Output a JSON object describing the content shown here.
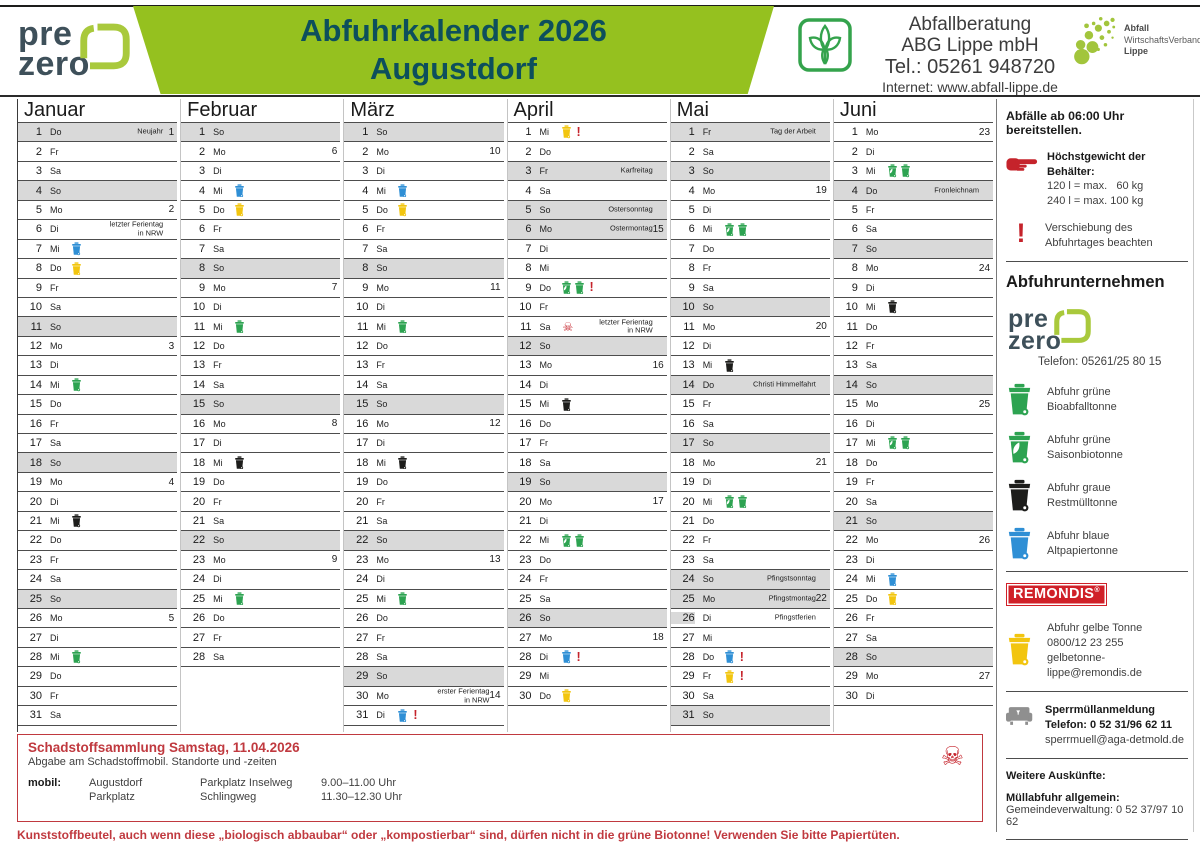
{
  "colors": {
    "lime": "#95c11f",
    "teal": "#0d4f5c",
    "red": "#c5232b",
    "shaded": "#d9d9d9",
    "bin_green": "#2da351",
    "bin_blue": "#2f8fd5",
    "bin_yellow": "#f2c50f",
    "bin_black": "#1d1d1b"
  },
  "glyphs": {
    "exclamation": "!",
    "skull": "☠"
  },
  "logos": {
    "prezero_line1": "pre",
    "prezero_line2": "zero"
  },
  "header": {
    "title_line1": "Abfuhrkalender 2026",
    "title_line2": "Augustdorf",
    "contact": {
      "line1": "Abfallberatung",
      "line2": "ABG Lippe mbH",
      "line3": "Tel.: 05261 948720",
      "line4": "Internet: www.abfall-lippe.de"
    },
    "awv": {
      "line1": "Abfall",
      "line2": "WirtschaftsVerband",
      "line3": "Lippe"
    }
  },
  "months": [
    {
      "name": "Januar",
      "days": [
        {
          "d": 1,
          "w": "Do",
          "s": 1,
          "n": "Neujahr",
          "k": 1
        },
        {
          "d": 2,
          "w": "Fr"
        },
        {
          "d": 3,
          "w": "Sa"
        },
        {
          "d": 4,
          "w": "So",
          "s": 1
        },
        {
          "d": 5,
          "w": "Mo",
          "k": 2
        },
        {
          "d": 6,
          "w": "Di",
          "n": "letzter Ferientag\nin NRW"
        },
        {
          "d": 7,
          "w": "Mi",
          "i": [
            "blue"
          ]
        },
        {
          "d": 8,
          "w": "Do",
          "i": [
            "yellow"
          ]
        },
        {
          "d": 9,
          "w": "Fr"
        },
        {
          "d": 10,
          "w": "Sa"
        },
        {
          "d": 11,
          "w": "So",
          "s": 1
        },
        {
          "d": 12,
          "w": "Mo",
          "k": 3
        },
        {
          "d": 13,
          "w": "Di"
        },
        {
          "d": 14,
          "w": "Mi",
          "i": [
            "green"
          ]
        },
        {
          "d": 15,
          "w": "Do"
        },
        {
          "d": 16,
          "w": "Fr"
        },
        {
          "d": 17,
          "w": "Sa"
        },
        {
          "d": 18,
          "w": "So",
          "s": 1
        },
        {
          "d": 19,
          "w": "Mo",
          "k": 4
        },
        {
          "d": 20,
          "w": "Di"
        },
        {
          "d": 21,
          "w": "Mi",
          "i": [
            "black"
          ]
        },
        {
          "d": 22,
          "w": "Do"
        },
        {
          "d": 23,
          "w": "Fr"
        },
        {
          "d": 24,
          "w": "Sa"
        },
        {
          "d": 25,
          "w": "So",
          "s": 1
        },
        {
          "d": 26,
          "w": "Mo",
          "k": 5
        },
        {
          "d": 27,
          "w": "Di"
        },
        {
          "d": 28,
          "w": "Mi",
          "i": [
            "green"
          ]
        },
        {
          "d": 29,
          "w": "Do"
        },
        {
          "d": 30,
          "w": "Fr"
        },
        {
          "d": 31,
          "w": "Sa"
        }
      ]
    },
    {
      "name": "Februar",
      "days": [
        {
          "d": 1,
          "w": "So",
          "s": 1
        },
        {
          "d": 2,
          "w": "Mo",
          "k": 6
        },
        {
          "d": 3,
          "w": "Di"
        },
        {
          "d": 4,
          "w": "Mi",
          "i": [
            "blue"
          ]
        },
        {
          "d": 5,
          "w": "Do",
          "i": [
            "yellow"
          ]
        },
        {
          "d": 6,
          "w": "Fr"
        },
        {
          "d": 7,
          "w": "Sa"
        },
        {
          "d": 8,
          "w": "So",
          "s": 1
        },
        {
          "d": 9,
          "w": "Mo",
          "k": 7
        },
        {
          "d": 10,
          "w": "Di"
        },
        {
          "d": 11,
          "w": "Mi",
          "i": [
            "green"
          ]
        },
        {
          "d": 12,
          "w": "Do"
        },
        {
          "d": 13,
          "w": "Fr"
        },
        {
          "d": 14,
          "w": "Sa"
        },
        {
          "d": 15,
          "w": "So",
          "s": 1
        },
        {
          "d": 16,
          "w": "Mo",
          "k": 8
        },
        {
          "d": 17,
          "w": "Di"
        },
        {
          "d": 18,
          "w": "Mi",
          "i": [
            "black"
          ]
        },
        {
          "d": 19,
          "w": "Do"
        },
        {
          "d": 20,
          "w": "Fr"
        },
        {
          "d": 21,
          "w": "Sa"
        },
        {
          "d": 22,
          "w": "So",
          "s": 1
        },
        {
          "d": 23,
          "w": "Mo",
          "k": 9
        },
        {
          "d": 24,
          "w": "Di"
        },
        {
          "d": 25,
          "w": "Mi",
          "i": [
            "green"
          ]
        },
        {
          "d": 26,
          "w": "Do"
        },
        {
          "d": 27,
          "w": "Fr"
        },
        {
          "d": 28,
          "w": "Sa"
        }
      ]
    },
    {
      "name": "März",
      "days": [
        {
          "d": 1,
          "w": "So",
          "s": 1
        },
        {
          "d": 2,
          "w": "Mo",
          "k": 10
        },
        {
          "d": 3,
          "w": "Di"
        },
        {
          "d": 4,
          "w": "Mi",
          "i": [
            "blue"
          ]
        },
        {
          "d": 5,
          "w": "Do",
          "i": [
            "yellow"
          ]
        },
        {
          "d": 6,
          "w": "Fr"
        },
        {
          "d": 7,
          "w": "Sa"
        },
        {
          "d": 8,
          "w": "So",
          "s": 1
        },
        {
          "d": 9,
          "w": "Mo",
          "k": 11
        },
        {
          "d": 10,
          "w": "Di"
        },
        {
          "d": 11,
          "w": "Mi",
          "i": [
            "green"
          ]
        },
        {
          "d": 12,
          "w": "Do"
        },
        {
          "d": 13,
          "w": "Fr"
        },
        {
          "d": 14,
          "w": "Sa"
        },
        {
          "d": 15,
          "w": "So",
          "s": 1
        },
        {
          "d": 16,
          "w": "Mo",
          "k": 12
        },
        {
          "d": 17,
          "w": "Di"
        },
        {
          "d": 18,
          "w": "Mi",
          "i": [
            "black"
          ]
        },
        {
          "d": 19,
          "w": "Do"
        },
        {
          "d": 20,
          "w": "Fr"
        },
        {
          "d": 21,
          "w": "Sa"
        },
        {
          "d": 22,
          "w": "So",
          "s": 1
        },
        {
          "d": 23,
          "w": "Mo",
          "k": 13
        },
        {
          "d": 24,
          "w": "Di"
        },
        {
          "d": 25,
          "w": "Mi",
          "i": [
            "green"
          ]
        },
        {
          "d": 26,
          "w": "Do"
        },
        {
          "d": 27,
          "w": "Fr"
        },
        {
          "d": 28,
          "w": "Sa"
        },
        {
          "d": 29,
          "w": "So",
          "s": 1
        },
        {
          "d": 30,
          "w": "Mo",
          "n": "erster Ferientag\nin NRW",
          "k": 14
        },
        {
          "d": 31,
          "w": "Di",
          "i": [
            "blue",
            "excl"
          ]
        }
      ]
    },
    {
      "name": "April",
      "days": [
        {
          "d": 1,
          "w": "Mi",
          "i": [
            "yellow",
            "excl"
          ]
        },
        {
          "d": 2,
          "w": "Do"
        },
        {
          "d": 3,
          "w": "Fr",
          "s": 1,
          "n": "Karfreitag"
        },
        {
          "d": 4,
          "w": "Sa"
        },
        {
          "d": 5,
          "w": "So",
          "s": 1,
          "n": "Ostersonntag"
        },
        {
          "d": 6,
          "w": "Mo",
          "s": 1,
          "n": "Ostermontag",
          "k": 15
        },
        {
          "d": 7,
          "w": "Di"
        },
        {
          "d": 8,
          "w": "Mi"
        },
        {
          "d": 9,
          "w": "Do",
          "i": [
            "saison",
            "green",
            "excl"
          ]
        },
        {
          "d": 10,
          "w": "Fr"
        },
        {
          "d": 11,
          "w": "Sa",
          "i": [
            "skull"
          ],
          "n": "letzter Ferientag\nin NRW"
        },
        {
          "d": 12,
          "w": "So",
          "s": 1
        },
        {
          "d": 13,
          "w": "Mo",
          "k": 16
        },
        {
          "d": 14,
          "w": "Di"
        },
        {
          "d": 15,
          "w": "Mi",
          "i": [
            "black"
          ]
        },
        {
          "d": 16,
          "w": "Do"
        },
        {
          "d": 17,
          "w": "Fr"
        },
        {
          "d": 18,
          "w": "Sa"
        },
        {
          "d": 19,
          "w": "So",
          "s": 1
        },
        {
          "d": 20,
          "w": "Mo",
          "k": 17
        },
        {
          "d": 21,
          "w": "Di"
        },
        {
          "d": 22,
          "w": "Mi",
          "i": [
            "saison",
            "green"
          ]
        },
        {
          "d": 23,
          "w": "Do"
        },
        {
          "d": 24,
          "w": "Fr"
        },
        {
          "d": 25,
          "w": "Sa"
        },
        {
          "d": 26,
          "w": "So",
          "s": 1
        },
        {
          "d": 27,
          "w": "Mo",
          "k": 18
        },
        {
          "d": 28,
          "w": "Di",
          "i": [
            "blue",
            "excl"
          ]
        },
        {
          "d": 29,
          "w": "Mi"
        },
        {
          "d": 30,
          "w": "Do",
          "i": [
            "yellow"
          ]
        }
      ]
    },
    {
      "name": "Mai",
      "days": [
        {
          "d": 1,
          "w": "Fr",
          "s": 1,
          "n": "Tag der Arbeit"
        },
        {
          "d": 2,
          "w": "Sa"
        },
        {
          "d": 3,
          "w": "So",
          "s": 1
        },
        {
          "d": 4,
          "w": "Mo",
          "k": 19
        },
        {
          "d": 5,
          "w": "Di"
        },
        {
          "d": 6,
          "w": "Mi",
          "i": [
            "saison",
            "green"
          ]
        },
        {
          "d": 7,
          "w": "Do"
        },
        {
          "d": 8,
          "w": "Fr"
        },
        {
          "d": 9,
          "w": "Sa"
        },
        {
          "d": 10,
          "w": "So",
          "s": 1
        },
        {
          "d": 11,
          "w": "Mo",
          "k": 20
        },
        {
          "d": 12,
          "w": "Di"
        },
        {
          "d": 13,
          "w": "Mi",
          "i": [
            "black"
          ]
        },
        {
          "d": 14,
          "w": "Do",
          "s": 1,
          "n": "Christi Himmelfahrt"
        },
        {
          "d": 15,
          "w": "Fr"
        },
        {
          "d": 16,
          "w": "Sa"
        },
        {
          "d": 17,
          "w": "So",
          "s": 1
        },
        {
          "d": 18,
          "w": "Mo",
          "k": 21
        },
        {
          "d": 19,
          "w": "Di"
        },
        {
          "d": 20,
          "w": "Mi",
          "i": [
            "saison",
            "green"
          ]
        },
        {
          "d": 21,
          "w": "Do"
        },
        {
          "d": 22,
          "w": "Fr"
        },
        {
          "d": 23,
          "w": "Sa"
        },
        {
          "d": 24,
          "w": "So",
          "s": 1,
          "n": "Pfingstsonntag"
        },
        {
          "d": 25,
          "w": "Mo",
          "s": 1,
          "n": "Pfingstmontag",
          "k": 22
        },
        {
          "d": 26,
          "w": "Di",
          "n": "Pfingstferien",
          "ns": 1
        },
        {
          "d": 27,
          "w": "Mi"
        },
        {
          "d": 28,
          "w": "Do",
          "i": [
            "blue",
            "excl"
          ]
        },
        {
          "d": 29,
          "w": "Fr",
          "i": [
            "yellow",
            "excl"
          ]
        },
        {
          "d": 30,
          "w": "Sa"
        },
        {
          "d": 31,
          "w": "So",
          "s": 1
        }
      ]
    },
    {
      "name": "Juni",
      "days": [
        {
          "d": 1,
          "w": "Mo",
          "k": 23
        },
        {
          "d": 2,
          "w": "Di"
        },
        {
          "d": 3,
          "w": "Mi",
          "i": [
            "saison",
            "green"
          ]
        },
        {
          "d": 4,
          "w": "Do",
          "s": 1,
          "n": "Fronleichnam"
        },
        {
          "d": 5,
          "w": "Fr"
        },
        {
          "d": 6,
          "w": "Sa"
        },
        {
          "d": 7,
          "w": "So",
          "s": 1
        },
        {
          "d": 8,
          "w": "Mo",
          "k": 24
        },
        {
          "d": 9,
          "w": "Di"
        },
        {
          "d": 10,
          "w": "Mi",
          "i": [
            "black"
          ]
        },
        {
          "d": 11,
          "w": "Do"
        },
        {
          "d": 12,
          "w": "Fr"
        },
        {
          "d": 13,
          "w": "Sa"
        },
        {
          "d": 14,
          "w": "So",
          "s": 1
        },
        {
          "d": 15,
          "w": "Mo",
          "k": 25
        },
        {
          "d": 16,
          "w": "Di"
        },
        {
          "d": 17,
          "w": "Mi",
          "i": [
            "saison",
            "green"
          ]
        },
        {
          "d": 18,
          "w": "Do"
        },
        {
          "d": 19,
          "w": "Fr"
        },
        {
          "d": 20,
          "w": "Sa"
        },
        {
          "d": 21,
          "w": "So",
          "s": 1
        },
        {
          "d": 22,
          "w": "Mo",
          "k": 26
        },
        {
          "d": 23,
          "w": "Di"
        },
        {
          "d": 24,
          "w": "Mi",
          "i": [
            "blue"
          ]
        },
        {
          "d": 25,
          "w": "Do",
          "i": [
            "yellow"
          ]
        },
        {
          "d": 26,
          "w": "Fr"
        },
        {
          "d": 27,
          "w": "Sa"
        },
        {
          "d": 28,
          "w": "So",
          "s": 1
        },
        {
          "d": 29,
          "w": "Mo",
          "k": 27
        },
        {
          "d": 30,
          "w": "Di"
        }
      ]
    }
  ],
  "sidebar": {
    "ready_note": "Abfälle ab 06:00 Uhr bereitstellen.",
    "weight": {
      "title": "Höchstgewicht der Behälter:",
      "line1": "120 l = max.   60 kg",
      "line2": "240 l = max. 100 kg"
    },
    "shift_note": "Verschiebung des\nAbfuhrtages beachten",
    "company_heading": "Abfuhrunternehmen",
    "company_phone": "Telefon: 05261/25 80 15",
    "legend": [
      {
        "icon": "green",
        "label": "Abfuhr grüne\nBioabfalltonne"
      },
      {
        "icon": "saison",
        "label": "Abfuhr grüne\nSaisonbiotonne"
      },
      {
        "icon": "black",
        "label": "Abfuhr graue\nRestmülltonne"
      },
      {
        "icon": "blue",
        "label": "Abfuhr blaue\nAltpapiertonne"
      }
    ],
    "remondis": {
      "logo": "REMONDIS",
      "reg": "®"
    },
    "yellow": {
      "icon": "yellow",
      "line1": "Abfuhr gelbe Tonne",
      "line2": "0800/12 23 255",
      "line3": "gelbetonne-lippe@remondis.de"
    },
    "bulky": {
      "title": "Sperrmüllanmeldung",
      "phone": "Telefon: 0 52 31/96 62 11",
      "email": "sperrmuell@aga-detmold.de"
    },
    "more": {
      "heading": "Weitere Auskünfte:",
      "sub": "Müllabfuhr allgemein:",
      "line": "Gemeindeverwaltung: 0 52 37/97 10 62"
    }
  },
  "hazard": {
    "title": "Schadstoffsammlung Samstag, 11.04.2026",
    "subtitle": "Abgabe am Schadstoffmobil. Standorte und -zeiten",
    "label": "mobil:",
    "rows": [
      [
        "Augustdorf",
        "Parkplatz Inselweg",
        "9.00–11.00 Uhr"
      ],
      [
        "Parkplatz",
        "Schlingweg",
        "11.30–12.30 Uhr"
      ]
    ]
  },
  "bottom_note": "Kunststoffbeutel, auch wenn diese „biologisch abbaubar“ oder „kompostierbar“ sind, dürfen nicht in die grüne Biotonne! Verwenden Sie bitte Papiertüten."
}
